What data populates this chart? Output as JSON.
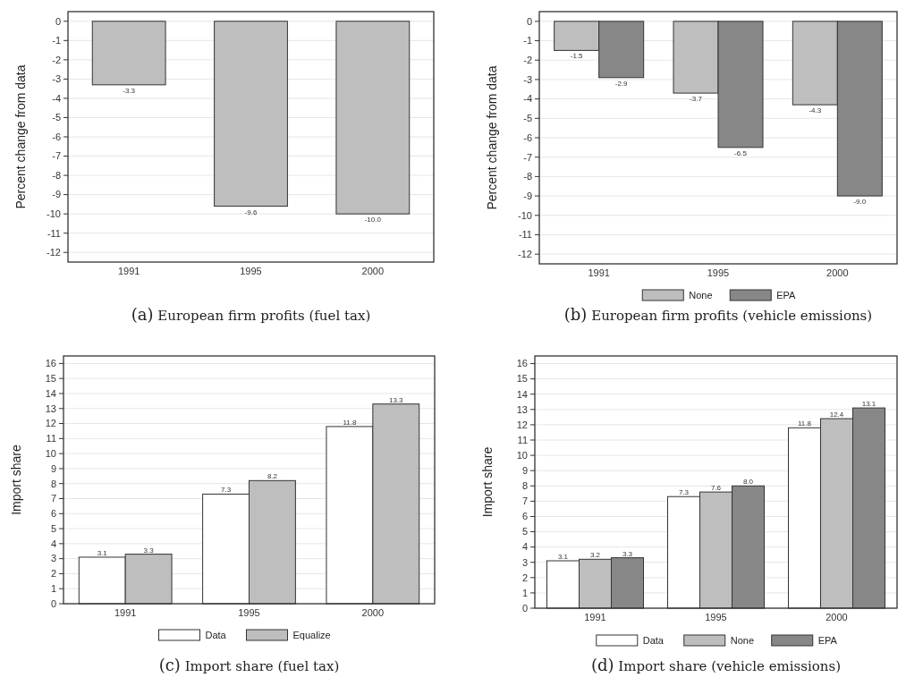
{
  "chart_data": [
    {
      "type": "bar",
      "title": "(a) European firm profits (fuel tax)",
      "ylabel": "Percent change from data",
      "categories": [
        "1991",
        "1995",
        "2000"
      ],
      "series": [
        {
          "color": "#bebebe",
          "values": [
            -3.3,
            -9.6,
            -10.0
          ],
          "value_labels": [
            "-3.3",
            "-9.6",
            "-10.0"
          ]
        }
      ],
      "ylim": [
        -12.5,
        0.5
      ],
      "yticks": [
        0,
        -1,
        -2,
        -3,
        -4,
        -5,
        -6,
        -7,
        -8,
        -9,
        -10,
        -11,
        -12
      ],
      "grid": "y",
      "legend": false
    },
    {
      "type": "bar",
      "title": "(b) European firm profits (vehicle emissions)",
      "ylabel": "Percent change from data",
      "categories": [
        "1991",
        "1995",
        "2000"
      ],
      "series": [
        {
          "name": "None",
          "color": "#bebebe",
          "values": [
            -1.5,
            -3.7,
            -4.3
          ],
          "value_labels": [
            "-1.5",
            "-3.7",
            "-4.3"
          ]
        },
        {
          "name": "EPA",
          "color": "#878787",
          "values": [
            -2.9,
            -6.5,
            -9.0
          ],
          "value_labels": [
            "-2.9",
            "-6.5",
            "-9.0"
          ]
        }
      ],
      "ylim": [
        -12.5,
        0.5
      ],
      "yticks": [
        0,
        -1,
        -2,
        -3,
        -4,
        -5,
        -6,
        -7,
        -8,
        -9,
        -10,
        -11,
        -12
      ],
      "grid": "y",
      "legend": "bottom"
    },
    {
      "type": "bar",
      "title": "(c) Import share (fuel tax)",
      "ylabel": "Import share",
      "categories": [
        "1991",
        "1995",
        "2000"
      ],
      "series": [
        {
          "name": "Data",
          "color": "#ffffff",
          "values": [
            3.1,
            7.3,
            11.8
          ],
          "value_labels": [
            "3.1",
            "7.3",
            "11.8"
          ]
        },
        {
          "name": "Equalize",
          "color": "#bebebe",
          "values": [
            3.3,
            8.2,
            13.3
          ],
          "value_labels": [
            "3.3",
            "8.2",
            "13.3"
          ]
        }
      ],
      "ylim": [
        0,
        16.5
      ],
      "yticks": [
        0,
        1,
        2,
        3,
        4,
        5,
        6,
        7,
        8,
        9,
        10,
        11,
        12,
        13,
        14,
        15,
        16
      ],
      "grid": "y",
      "legend": "bottom"
    },
    {
      "type": "bar",
      "title": "(d) Import share (vehicle emissions)",
      "ylabel": "Import share",
      "categories": [
        "1991",
        "1995",
        "2000"
      ],
      "series": [
        {
          "name": "Data",
          "color": "#ffffff",
          "values": [
            3.1,
            7.3,
            11.8
          ],
          "value_labels": [
            "3.1",
            "7.3",
            "11.8"
          ]
        },
        {
          "name": "None",
          "color": "#bebebe",
          "values": [
            3.2,
            7.6,
            12.4
          ],
          "value_labels": [
            "3.2",
            "7.6",
            "12.4"
          ]
        },
        {
          "name": "EPA",
          "color": "#878787",
          "values": [
            3.3,
            8.0,
            13.1
          ],
          "value_labels": [
            "3.3",
            "8.0",
            "13.1"
          ]
        }
      ],
      "ylim": [
        0,
        16.5
      ],
      "yticks": [
        0,
        1,
        2,
        3,
        4,
        5,
        6,
        7,
        8,
        9,
        10,
        11,
        12,
        13,
        14,
        15,
        16
      ],
      "grid": "y",
      "legend": "bottom"
    }
  ]
}
